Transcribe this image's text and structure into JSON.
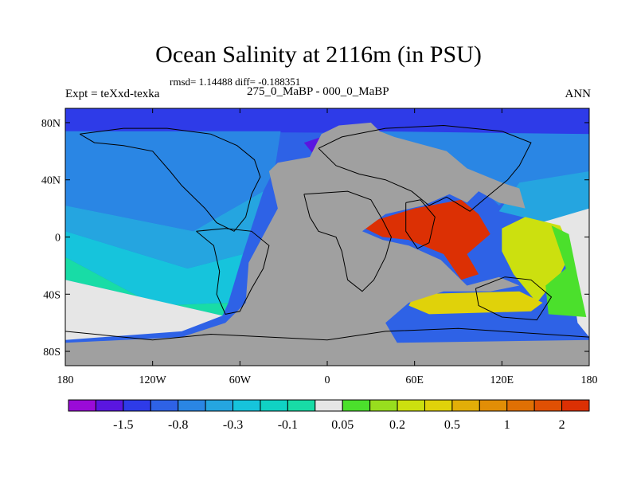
{
  "chart_data": {
    "type": "heatmap",
    "title": "Ocean Salinity at 2116m (in PSU)",
    "stats": "rmsd= 1.14488 diff= -0.188351",
    "experiment": "Expt = teXxd-texka",
    "comparison": "275_0_MaBP - 000_0_MaBP",
    "season": "ANN",
    "xlim": [
      -180,
      180
    ],
    "ylim": [
      -90,
      90
    ],
    "x_ticks": [
      {
        "value": -180,
        "label": "180"
      },
      {
        "value": -120,
        "label": "120W"
      },
      {
        "value": -60,
        "label": "60W"
      },
      {
        "value": 0,
        "label": "0"
      },
      {
        "value": 60,
        "label": "60E"
      },
      {
        "value": 120,
        "label": "120E"
      },
      {
        "value": 180,
        "label": "180"
      }
    ],
    "y_ticks": [
      {
        "value": 80,
        "label": "80N"
      },
      {
        "value": 40,
        "label": "40N"
      },
      {
        "value": 0,
        "label": "0"
      },
      {
        "value": -40,
        "label": "40S"
      },
      {
        "value": -80,
        "label": "80S"
      }
    ],
    "colorbar": {
      "colors": [
        "#9a0bd8",
        "#5a16e0",
        "#2e3be8",
        "#2e62e6",
        "#2a86e4",
        "#25a5e0",
        "#16c4dc",
        "#10d2c4",
        "#18dca6",
        "#e6e6e6",
        "#4be02c",
        "#98de1e",
        "#cce00f",
        "#e0d20a",
        "#e2ae08",
        "#e28e06",
        "#e07004",
        "#e05004",
        "#dc3004"
      ],
      "labels": [
        {
          "index": 2,
          "text": "-1.5"
        },
        {
          "index": 4,
          "text": "-0.8"
        },
        {
          "index": 6,
          "text": "-0.3"
        },
        {
          "index": 8,
          "text": "-0.1"
        },
        {
          "index": 10,
          "text": "0.05"
        },
        {
          "index": 12,
          "text": "0.2"
        },
        {
          "index": 14,
          "text": "0.5"
        },
        {
          "index": 16,
          "text": "1"
        },
        {
          "index": 18,
          "text": "2"
        }
      ]
    },
    "land_color": "#a0a0a0",
    "fill_regions": [
      {
        "name": "arctic-band",
        "color": "#2e3be8",
        "lonlat": [
          [
            -180,
            90
          ],
          [
            180,
            90
          ],
          [
            180,
            72
          ],
          [
            -180,
            74
          ]
        ]
      },
      {
        "name": "north-pacific",
        "color": "#2a86e4",
        "lonlat": [
          [
            -180,
            74
          ],
          [
            -32,
            74
          ],
          [
            -36,
            48
          ],
          [
            -44,
            32
          ],
          [
            -92,
            4
          ],
          [
            -180,
            22
          ]
        ]
      },
      {
        "name": "central-atlantic-north",
        "color": "#25a5e0",
        "lonlat": [
          [
            -180,
            22
          ],
          [
            -92,
            4
          ],
          [
            -44,
            32
          ],
          [
            -58,
            -12
          ],
          [
            -96,
            -22
          ],
          [
            -180,
            4
          ]
        ]
      },
      {
        "name": "south-pacific-mid",
        "color": "#16c4dc",
        "lonlat": [
          [
            -180,
            4
          ],
          [
            -96,
            -22
          ],
          [
            -58,
            -12
          ],
          [
            -68,
            -46
          ],
          [
            -118,
            -48
          ],
          [
            -180,
            -14
          ]
        ]
      },
      {
        "name": "south-pacific-low",
        "color": "#18dca6",
        "lonlat": [
          [
            -180,
            -14
          ],
          [
            -118,
            -48
          ],
          [
            -68,
            -46
          ],
          [
            -72,
            -55
          ],
          [
            -180,
            -30
          ]
        ]
      },
      {
        "name": "near-zero-southwest",
        "color": "#e6e6e6",
        "lonlat": [
          [
            -180,
            -30
          ],
          [
            -72,
            -55
          ],
          [
            -100,
            -66
          ],
          [
            -180,
            -72
          ]
        ]
      },
      {
        "name": "tethys-north",
        "color": "#2a86e4",
        "lonlat": [
          [
            28,
            74
          ],
          [
            180,
            72
          ],
          [
            180,
            46
          ],
          [
            136,
            36
          ],
          [
            118,
            22
          ],
          [
            96,
            44
          ],
          [
            60,
            58
          ]
        ]
      },
      {
        "name": "tethys-east",
        "color": "#25a5e0",
        "lonlat": [
          [
            132,
            38
          ],
          [
            180,
            46
          ],
          [
            180,
            20
          ],
          [
            150,
            10
          ],
          [
            118,
            18
          ]
        ]
      },
      {
        "name": "east-near-zero",
        "color": "#e6e6e6",
        "lonlat": [
          [
            140,
            8
          ],
          [
            180,
            20
          ],
          [
            180,
            -70
          ],
          [
            172,
            -60
          ],
          [
            166,
            -20
          ],
          [
            150,
            -6
          ]
        ]
      },
      {
        "name": "tethys-south",
        "color": "#dc3004",
        "lonlat": [
          [
            26,
            6
          ],
          [
            34,
            12
          ],
          [
            60,
            20
          ],
          [
            92,
            26
          ],
          [
            104,
            16
          ],
          [
            112,
            2
          ],
          [
            96,
            -12
          ],
          [
            104,
            -26
          ],
          [
            92,
            -30
          ],
          [
            80,
            -12
          ],
          [
            56,
            -2
          ],
          [
            38,
            0
          ]
        ]
      },
      {
        "name": "east-arm-yellow",
        "color": "#cce00f",
        "lonlat": [
          [
            120,
            6
          ],
          [
            136,
            14
          ],
          [
            160,
            8
          ],
          [
            168,
            -10
          ],
          [
            160,
            -26
          ],
          [
            144,
            -46
          ],
          [
            128,
            -26
          ],
          [
            120,
            -10
          ]
        ]
      },
      {
        "name": "east-arm-green",
        "color": "#4be02c",
        "lonlat": [
          [
            154,
            8
          ],
          [
            166,
            2
          ],
          [
            172,
            -28
          ],
          [
            178,
            -56
          ],
          [
            152,
            -54
          ],
          [
            150,
            -34
          ],
          [
            164,
            -22
          ]
        ]
      },
      {
        "name": "south-ridge",
        "color": "#e0d20a",
        "lonlat": [
          [
            60,
            -40
          ],
          [
            132,
            -38
          ],
          [
            148,
            -46
          ],
          [
            140,
            -52
          ],
          [
            70,
            -54
          ],
          [
            56,
            -48
          ]
        ]
      },
      {
        "name": "north-deep-purple",
        "color": "#9a0bd8",
        "lonlat": [
          [
            -4,
            64
          ],
          [
            14,
            66
          ],
          [
            22,
            60
          ],
          [
            14,
            52
          ],
          [
            2,
            54
          ]
        ]
      },
      {
        "name": "north-purple-halo",
        "color": "#5a16e0",
        "lonlat": [
          [
            -16,
            66
          ],
          [
            -4,
            70
          ],
          [
            22,
            66
          ],
          [
            26,
            56
          ],
          [
            14,
            50
          ],
          [
            -8,
            56
          ]
        ]
      }
    ],
    "land_regions": [
      {
        "name": "pangea-core",
        "lonlat": [
          [
            8,
            78
          ],
          [
            30,
            80
          ],
          [
            36,
            74
          ],
          [
            46,
            70
          ],
          [
            82,
            60
          ],
          [
            96,
            48
          ],
          [
            120,
            38
          ],
          [
            132,
            34
          ],
          [
            136,
            20
          ],
          [
            118,
            24
          ],
          [
            104,
            32
          ],
          [
            96,
            24
          ],
          [
            84,
            30
          ],
          [
            66,
            22
          ],
          [
            40,
            16
          ],
          [
            24,
            4
          ],
          [
            38,
            -2
          ],
          [
            56,
            -6
          ],
          [
            78,
            -16
          ],
          [
            96,
            -34
          ],
          [
            118,
            -28
          ],
          [
            132,
            -34
          ],
          [
            112,
            -38
          ],
          [
            80,
            -38
          ],
          [
            56,
            -46
          ],
          [
            40,
            -60
          ],
          [
            48,
            -74
          ],
          [
            180,
            -72
          ],
          [
            180,
            -90
          ],
          [
            -180,
            -90
          ],
          [
            -180,
            -74
          ],
          [
            -100,
            -70
          ],
          [
            -70,
            -60
          ],
          [
            -56,
            -46
          ],
          [
            -54,
            -18
          ],
          [
            -34,
            20
          ],
          [
            -40,
            46
          ],
          [
            -34,
            52
          ],
          [
            -12,
            56
          ],
          [
            -4,
            72
          ]
        ]
      }
    ],
    "coast_lines": [
      {
        "name": "north-america-coast",
        "lonlat": [
          [
            -170,
            72
          ],
          [
            -160,
            66
          ],
          [
            -140,
            64
          ],
          [
            -120,
            60
          ],
          [
            -108,
            46
          ],
          [
            -100,
            36
          ],
          [
            -84,
            20
          ],
          [
            -76,
            10
          ],
          [
            -64,
            4
          ],
          [
            -56,
            14
          ],
          [
            -52,
            30
          ],
          [
            -46,
            42
          ],
          [
            -50,
            54
          ],
          [
            -62,
            64
          ],
          [
            -80,
            72
          ],
          [
            -110,
            76
          ],
          [
            -140,
            76
          ],
          [
            -170,
            72
          ]
        ]
      },
      {
        "name": "south-america-coast",
        "lonlat": [
          [
            -90,
            4
          ],
          [
            -78,
            -6
          ],
          [
            -74,
            -24
          ],
          [
            -76,
            -40
          ],
          [
            -70,
            -54
          ],
          [
            -60,
            -52
          ],
          [
            -52,
            -36
          ],
          [
            -44,
            -22
          ],
          [
            -40,
            -6
          ],
          [
            -52,
            4
          ],
          [
            -70,
            6
          ],
          [
            -90,
            4
          ]
        ]
      },
      {
        "name": "africa-coast",
        "lonlat": [
          [
            -16,
            30
          ],
          [
            -12,
            14
          ],
          [
            -6,
            4
          ],
          [
            6,
            0
          ],
          [
            10,
            -10
          ],
          [
            14,
            -30
          ],
          [
            24,
            -38
          ],
          [
            32,
            -30
          ],
          [
            40,
            -14
          ],
          [
            44,
            0
          ],
          [
            38,
            12
          ],
          [
            30,
            26
          ],
          [
            14,
            32
          ],
          [
            -16,
            30
          ]
        ]
      },
      {
        "name": "eurasia-coast",
        "lonlat": [
          [
            -6,
            62
          ],
          [
            10,
            70
          ],
          [
            40,
            76
          ],
          [
            80,
            78
          ],
          [
            120,
            74
          ],
          [
            140,
            66
          ],
          [
            132,
            50
          ],
          [
            124,
            40
          ],
          [
            112,
            30
          ],
          [
            98,
            18
          ],
          [
            82,
            28
          ],
          [
            70,
            22
          ],
          [
            58,
            32
          ],
          [
            40,
            40
          ],
          [
            22,
            44
          ],
          [
            6,
            50
          ],
          [
            -6,
            62
          ]
        ]
      },
      {
        "name": "india-coast",
        "lonlat": [
          [
            54,
            24
          ],
          [
            64,
            26
          ],
          [
            74,
            14
          ],
          [
            70,
            -4
          ],
          [
            62,
            -8
          ],
          [
            54,
            4
          ],
          [
            54,
            24
          ]
        ]
      },
      {
        "name": "australia-antarctica-coast",
        "lonlat": [
          [
            102,
            -36
          ],
          [
            122,
            -28
          ],
          [
            140,
            -30
          ],
          [
            154,
            -42
          ],
          [
            144,
            -58
          ],
          [
            120,
            -56
          ],
          [
            104,
            -48
          ],
          [
            102,
            -36
          ]
        ]
      },
      {
        "name": "antarctica-coast",
        "lonlat": [
          [
            -180,
            -66
          ],
          [
            -120,
            -72
          ],
          [
            -80,
            -68
          ],
          [
            -40,
            -70
          ],
          [
            0,
            -72
          ],
          [
            40,
            -66
          ],
          [
            90,
            -64
          ],
          [
            150,
            -68
          ],
          [
            180,
            -70
          ]
        ]
      }
    ]
  }
}
